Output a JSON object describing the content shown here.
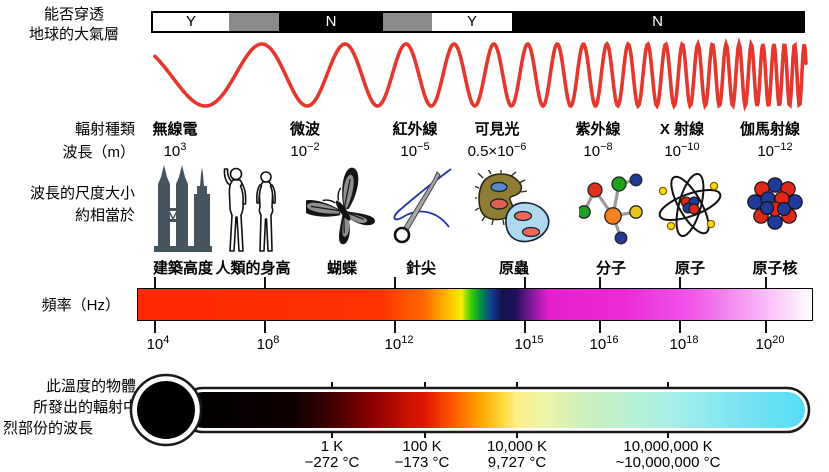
{
  "atmosphere": {
    "label_line1": "能否穿透",
    "label_line2": "地球的大氣層",
    "segments": [
      "Y",
      "",
      "N",
      "",
      "Y",
      "N"
    ]
  },
  "radiation": {
    "row_label": "輻射種類",
    "wavelength_label": "波長（m）",
    "bands": [
      {
        "name": "無線電",
        "base": "10",
        "exp": "3"
      },
      {
        "name": "微波",
        "base": "10",
        "exp": "−2"
      },
      {
        "name": "紅外線",
        "base": "10",
        "exp": "−5"
      },
      {
        "name": "可見光",
        "base": "0.5×10",
        "exp": "−6"
      },
      {
        "name": "紫外線",
        "base": "10",
        "exp": "−8"
      },
      {
        "name": "X 射線",
        "base": "10",
        "exp": "−10"
      },
      {
        "name": "伽馬射線",
        "base": "10",
        "exp": "−12"
      }
    ]
  },
  "scale": {
    "label_line1": "波長的尺度大小",
    "label_line2": "約相當於",
    "objects": [
      {
        "label": "建築高度",
        "icon": "buildings-icon"
      },
      {
        "label": "人類的身高",
        "icon": "humans-icon"
      },
      {
        "label": "蝴蝶",
        "icon": "butterfly-icon"
      },
      {
        "label": "針尖",
        "icon": "needle-icon"
      },
      {
        "label": "原蟲",
        "icon": "protozoa-icon"
      },
      {
        "label": "分子",
        "icon": "molecule-icon"
      },
      {
        "label": "原子",
        "icon": "atom-icon"
      },
      {
        "label": "原子核",
        "icon": "nucleus-icon"
      }
    ]
  },
  "frequency": {
    "label": "頻率（Hz）",
    "ticks": [
      {
        "base": "10",
        "exp": "4"
      },
      {
        "base": "10",
        "exp": "8"
      },
      {
        "base": "10",
        "exp": "12"
      },
      {
        "base": "10",
        "exp": "15"
      },
      {
        "base": "10",
        "exp": "16"
      },
      {
        "base": "10",
        "exp": "18"
      },
      {
        "base": "10",
        "exp": "20"
      }
    ]
  },
  "temperature": {
    "label_line1": "此溫度的物體",
    "label_line2": "所發出的輻射中",
    "label_line3": "烈部份的波長",
    "ticks": [
      {
        "kelvin": "1 K",
        "celsius": "−272 °C"
      },
      {
        "kelvin": "100 K",
        "celsius": "−173 °C"
      },
      {
        "kelvin": "10,000 K",
        "celsius": "9,727 °C"
      },
      {
        "kelvin": "10,000,000 K",
        "celsius": "~10,000,000 °C"
      }
    ]
  },
  "colors": {
    "wave_red": "#e4372e",
    "bar_gray": "#8a8a8a",
    "building_slate": "#46545e"
  }
}
